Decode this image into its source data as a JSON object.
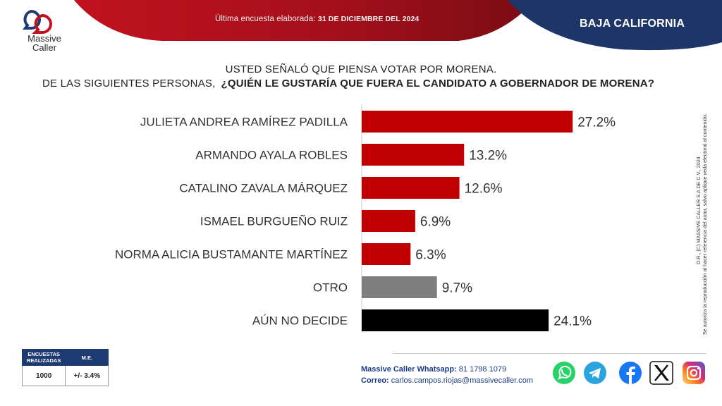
{
  "header": {
    "survey_prefix": "Última encuesta elaborada:",
    "survey_date": "31 DE DICIEMBRE DEL 2024",
    "region": "BAJA CALIFORNIA",
    "logo_line1": "Massive",
    "logo_line2": "Caller"
  },
  "question": {
    "line1": "USTED SEÑALÓ QUE PIENSA VOTAR POR MORENA.",
    "line2_a": "DE LAS SIGUIENTES PERSONAS,",
    "line2_b": "¿QUIÉN LE GUSTARÍA QUE FUERA EL CANDIDATO A GOBERNADOR DE MORENA?"
  },
  "chart_data": {
    "type": "bar",
    "orientation": "horizontal",
    "categories": [
      "JULIETA ANDREA RAMÍREZ PADILLA",
      "ARMANDO AYALA ROBLES",
      "CATALINO ZAVALA MÁRQUEZ",
      "ISMAEL BURGUEÑO RUIZ",
      "NORMA ALICIA BUSTAMANTE MARTÍNEZ",
      "OTRO",
      "AÚN NO DECIDE"
    ],
    "values": [
      27.2,
      13.2,
      12.6,
      6.9,
      6.3,
      9.7,
      24.1
    ],
    "value_labels": [
      "27.2%",
      "13.2%",
      "12.6%",
      "6.9%",
      "6.3%",
      "9.7%",
      "24.1%"
    ],
    "colors": [
      "#c00000",
      "#c00000",
      "#c00000",
      "#c00000",
      "#c00000",
      "#7f7f7f",
      "#000000"
    ],
    "xlim": [
      0,
      28
    ]
  },
  "side_note": {
    "line1": "D.R., (C) MASSIVE CALLER S.A DE C.V., 2024",
    "line2": "Se autoriza la reproducción al hacer referencia del autor, salvo aplique veda electoral al contenido."
  },
  "stats": {
    "col1_header_line1": "ENCUESTAS",
    "col1_header_line2": "REALIZADAS",
    "col2_header": "M.E.",
    "encuestas": "1000",
    "me": "+/- 3.4%"
  },
  "contact": {
    "whatsapp_label": "Massive Caller Whatsapp:",
    "whatsapp_number": "81 1798 1079",
    "email_label": "Correo:",
    "email": "carlos.campos.riojas@massivecaller.com"
  },
  "social": [
    "whatsapp-icon",
    "telegram-icon",
    "facebook-icon",
    "x-icon",
    "instagram-icon"
  ],
  "colors": {
    "banner_red": "#b0131e",
    "banner_navy": "#1d3567",
    "bar_red": "#c00000"
  }
}
